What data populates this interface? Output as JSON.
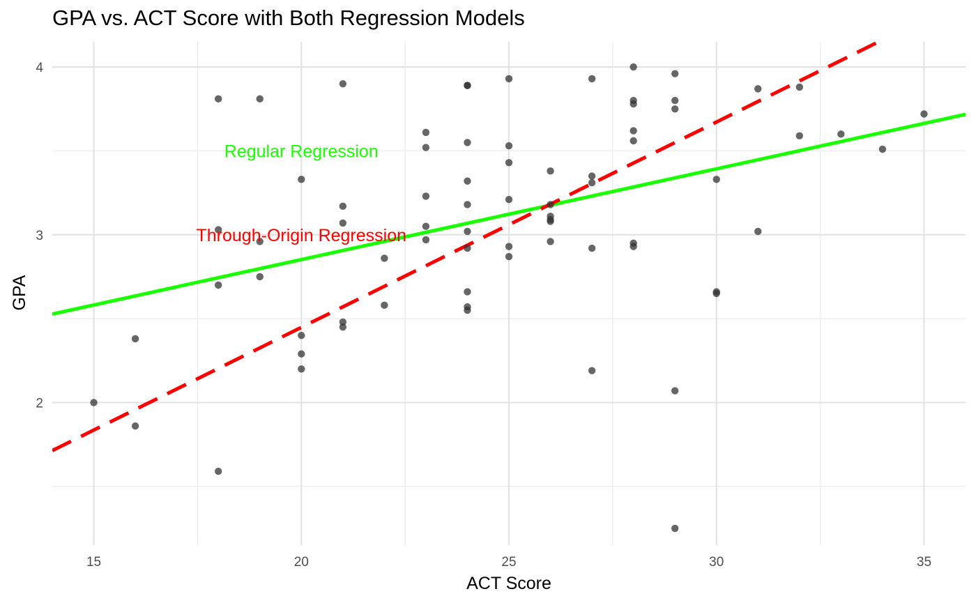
{
  "chart_data": {
    "type": "scatter",
    "title": "GPA vs. ACT Score with Both Regression Models",
    "xlabel": "ACT Score",
    "ylabel": "GPA",
    "xlim": [
      14,
      36
    ],
    "ylim": [
      1.15,
      4.15
    ],
    "x_ticks": [
      15,
      20,
      25,
      30,
      35
    ],
    "y_ticks": [
      2,
      3,
      4
    ],
    "grid": true,
    "point_color": "#333333",
    "points": [
      {
        "x": 15,
        "y": 2.0
      },
      {
        "x": 16,
        "y": 2.38
      },
      {
        "x": 16,
        "y": 1.86
      },
      {
        "x": 18,
        "y": 3.81
      },
      {
        "x": 18,
        "y": 3.03
      },
      {
        "x": 18,
        "y": 2.7
      },
      {
        "x": 18,
        "y": 1.59
      },
      {
        "x": 19,
        "y": 3.81
      },
      {
        "x": 19,
        "y": 2.96
      },
      {
        "x": 19,
        "y": 2.75
      },
      {
        "x": 20,
        "y": 3.33
      },
      {
        "x": 20,
        "y": 2.4
      },
      {
        "x": 20,
        "y": 2.29
      },
      {
        "x": 20,
        "y": 2.2
      },
      {
        "x": 21,
        "y": 3.9
      },
      {
        "x": 21,
        "y": 3.17
      },
      {
        "x": 21,
        "y": 3.07
      },
      {
        "x": 21,
        "y": 2.48
      },
      {
        "x": 21,
        "y": 2.45
      },
      {
        "x": 22,
        "y": 2.86
      },
      {
        "x": 22,
        "y": 2.58
      },
      {
        "x": 23,
        "y": 3.61
      },
      {
        "x": 23,
        "y": 3.52
      },
      {
        "x": 23,
        "y": 3.23
      },
      {
        "x": 23,
        "y": 3.05
      },
      {
        "x": 23,
        "y": 2.97
      },
      {
        "x": 24,
        "y": 3.89
      },
      {
        "x": 24,
        "y": 3.89
      },
      {
        "x": 24,
        "y": 3.55
      },
      {
        "x": 24,
        "y": 3.32
      },
      {
        "x": 24,
        "y": 3.18
      },
      {
        "x": 24,
        "y": 3.02
      },
      {
        "x": 24,
        "y": 2.92
      },
      {
        "x": 24,
        "y": 2.66
      },
      {
        "x": 24,
        "y": 2.57
      },
      {
        "x": 24,
        "y": 2.55
      },
      {
        "x": 25,
        "y": 3.93
      },
      {
        "x": 25,
        "y": 3.53
      },
      {
        "x": 25,
        "y": 3.43
      },
      {
        "x": 25,
        "y": 3.21
      },
      {
        "x": 25,
        "y": 2.93
      },
      {
        "x": 25,
        "y": 2.87
      },
      {
        "x": 26,
        "y": 3.38
      },
      {
        "x": 26,
        "y": 3.18
      },
      {
        "x": 26,
        "y": 3.11
      },
      {
        "x": 26,
        "y": 3.09
      },
      {
        "x": 26,
        "y": 3.08
      },
      {
        "x": 26,
        "y": 2.96
      },
      {
        "x": 27,
        "y": 3.93
      },
      {
        "x": 27,
        "y": 3.35
      },
      {
        "x": 27,
        "y": 3.31
      },
      {
        "x": 27,
        "y": 2.92
      },
      {
        "x": 27,
        "y": 2.19
      },
      {
        "x": 28,
        "y": 4.0
      },
      {
        "x": 28,
        "y": 3.8
      },
      {
        "x": 28,
        "y": 3.78
      },
      {
        "x": 28,
        "y": 3.62
      },
      {
        "x": 28,
        "y": 3.56
      },
      {
        "x": 28,
        "y": 2.95
      },
      {
        "x": 28,
        "y": 2.93
      },
      {
        "x": 29,
        "y": 3.96
      },
      {
        "x": 29,
        "y": 3.8
      },
      {
        "x": 29,
        "y": 3.75
      },
      {
        "x": 29,
        "y": 2.07
      },
      {
        "x": 29,
        "y": 1.25
      },
      {
        "x": 30,
        "y": 3.33
      },
      {
        "x": 30,
        "y": 2.66
      },
      {
        "x": 30,
        "y": 2.65
      },
      {
        "x": 31,
        "y": 3.87
      },
      {
        "x": 31,
        "y": 3.02
      },
      {
        "x": 32,
        "y": 3.88
      },
      {
        "x": 32,
        "y": 3.59
      },
      {
        "x": 33,
        "y": 3.6
      },
      {
        "x": 34,
        "y": 3.51
      },
      {
        "x": 35,
        "y": 3.72
      }
    ],
    "lines": [
      {
        "name": "Regular Regression",
        "intercept": 1.77,
        "slope": 0.0541,
        "color": "#19ff00",
        "style": "solid"
      },
      {
        "name": "Through-Origin Regression",
        "intercept": 0,
        "slope": 0.1224,
        "color": "#ff0000",
        "style": "dashed"
      }
    ],
    "annotations": [
      {
        "text": "Regular Regression",
        "x": 20,
        "y": 3.5,
        "color": "#19ff00"
      },
      {
        "text": "Through-Origin Regression",
        "x": 20,
        "y": 3.0,
        "color": "#ff0000"
      }
    ]
  }
}
